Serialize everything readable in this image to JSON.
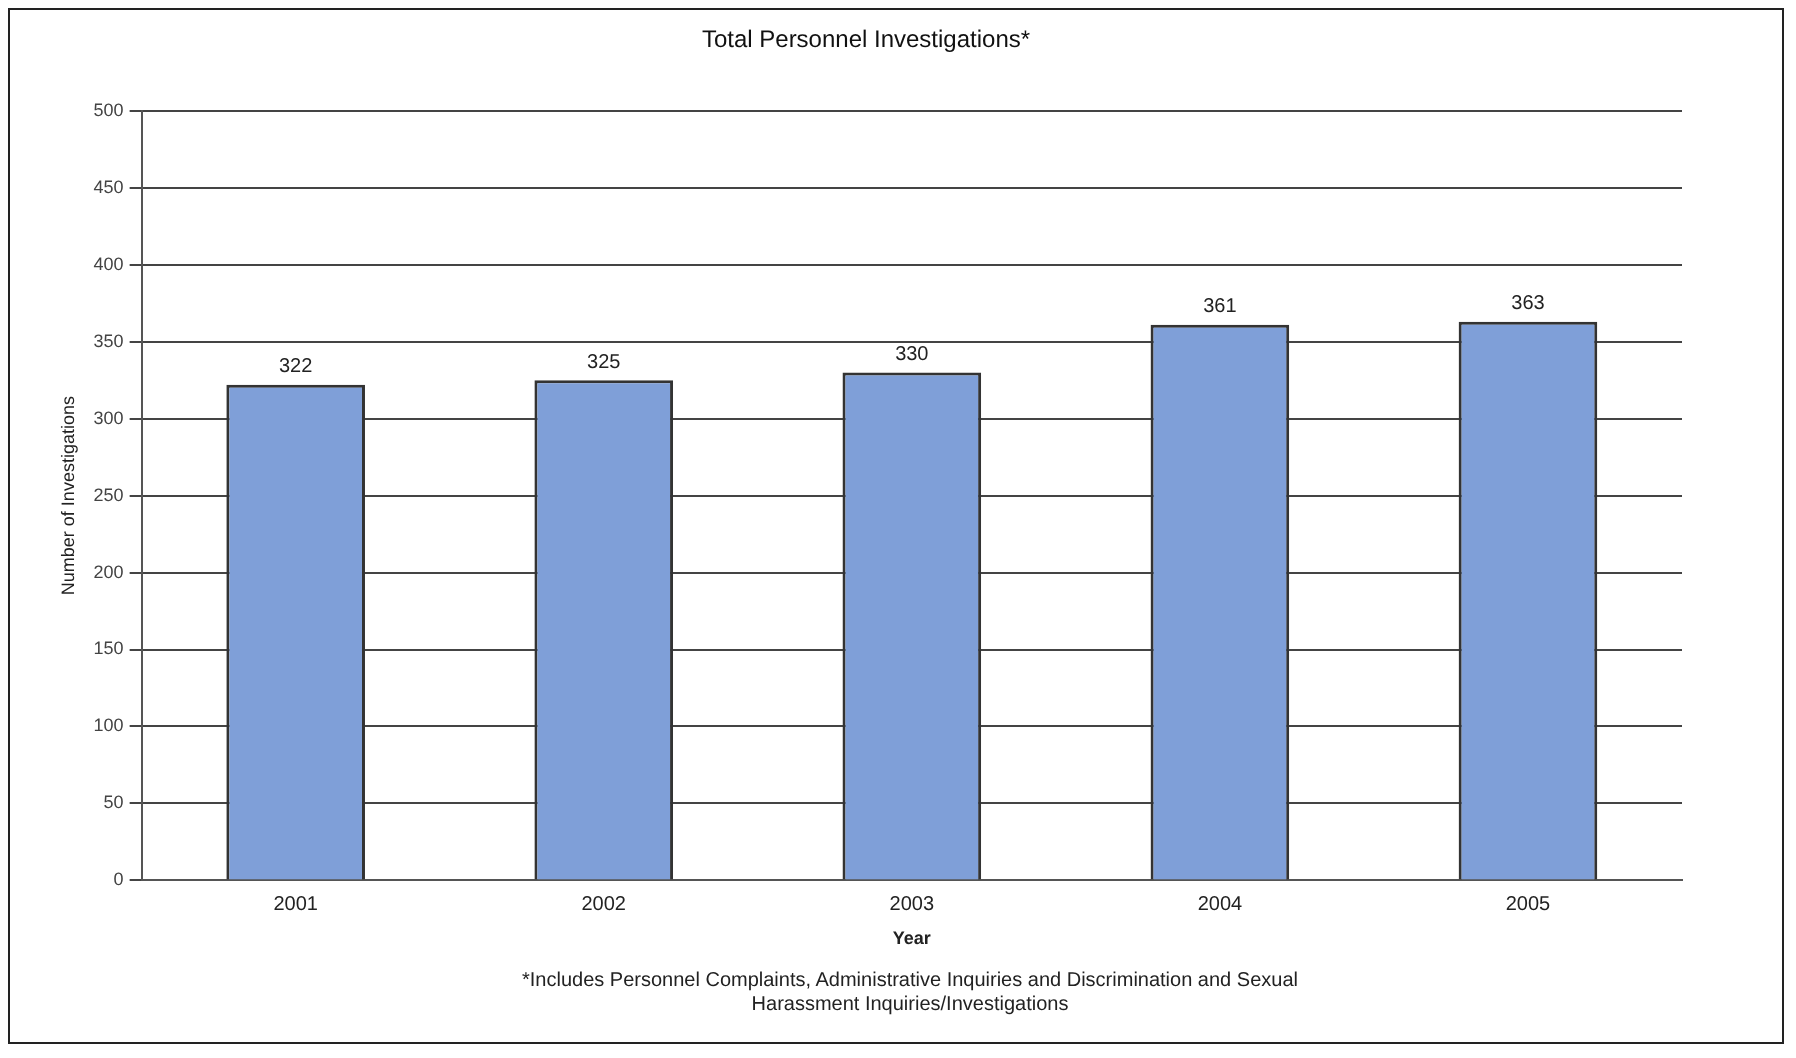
{
  "chart_data": {
    "type": "bar",
    "title": "Total Personnel Investigations*",
    "xlabel": "Year",
    "ylabel": "Number of Investigations",
    "categories": [
      "2001",
      "2002",
      "2003",
      "2004",
      "2005"
    ],
    "values": [
      322,
      325,
      330,
      361,
      363
    ],
    "color": "#7f9fd8",
    "ylim": [
      0,
      500
    ],
    "yticks": [
      0,
      50,
      100,
      150,
      200,
      250,
      300,
      350,
      400,
      450,
      500
    ],
    "grid": "y",
    "data_labels": true,
    "annotations": [
      "*Includes Personnel Complaints, Administrative Inquiries and Discrimination and Sexual Harassment Inquiries/Investigations"
    ]
  }
}
